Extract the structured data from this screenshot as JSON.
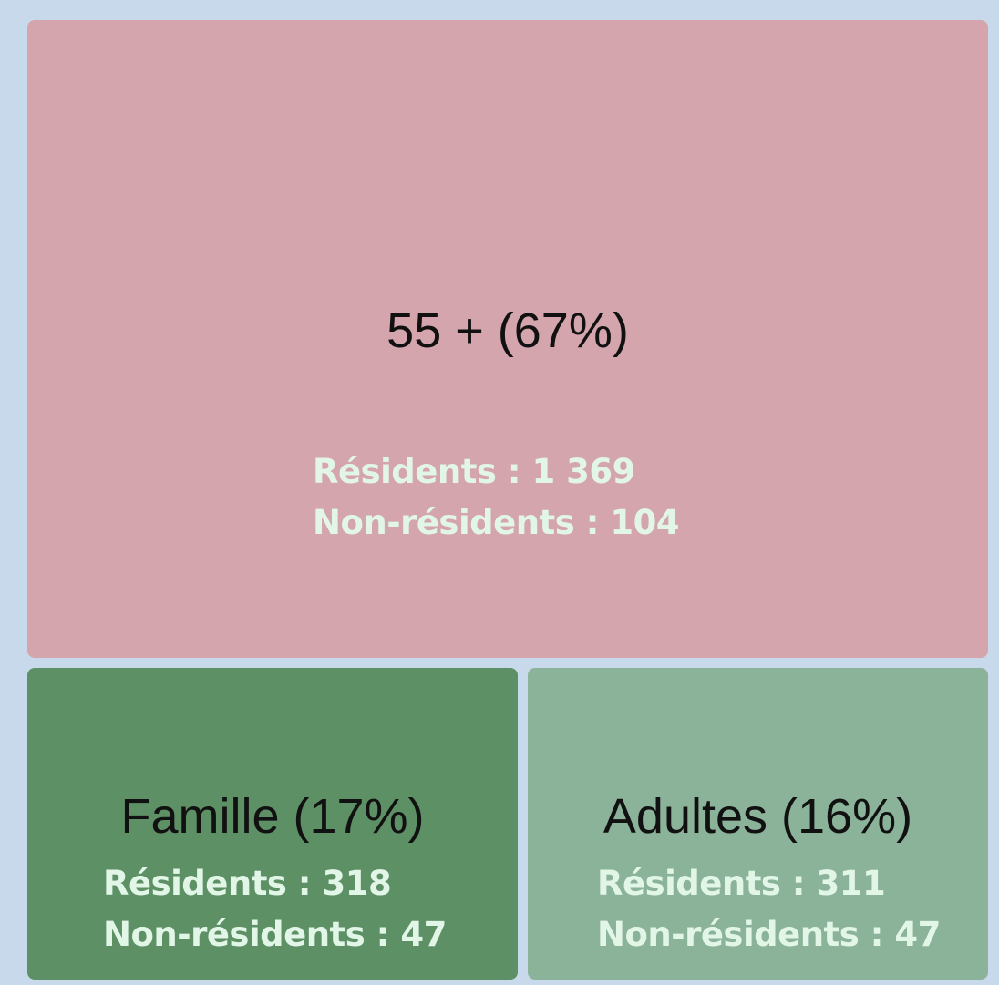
{
  "tiles": [
    {
      "label": "55 + (67%)",
      "color": "#d4a5ad",
      "lines": [
        "Résidents : 1 369",
        "Non-résidents : 104"
      ]
    },
    {
      "label": "Famille (17%)",
      "color": "#5e9066",
      "lines": [
        "Résidents : 318",
        "Non-résidents : 47"
      ]
    },
    {
      "label": "Adultes (16%)",
      "color": "#8bb39a",
      "lines": [
        "Résidents : 311",
        "Non-résidents : 47"
      ]
    }
  ]
}
